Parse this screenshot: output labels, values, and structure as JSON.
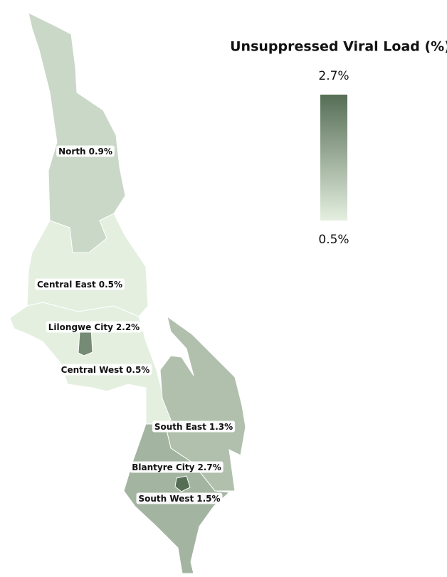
{
  "map": {
    "legend": {
      "title": "Unsuppressed Viral Load (%)",
      "max": {
        "value": 2.7,
        "label": "2.7%"
      },
      "min": {
        "value": 0.5,
        "label": "0.5%"
      },
      "min_color": "#e4efe0",
      "max_color": "#566e55"
    },
    "regions": [
      {
        "name": "North",
        "value": 0.9,
        "value_label": "0.9%"
      },
      {
        "name": "Central East",
        "value": 0.5,
        "value_label": "0.5%"
      },
      {
        "name": "Lilongwe City",
        "value": 2.2,
        "value_label": "2.2%"
      },
      {
        "name": "Central West",
        "value": 0.5,
        "value_label": "0.5%"
      },
      {
        "name": "South East",
        "value": 1.3,
        "value_label": "1.3%"
      },
      {
        "name": "Blantyre City",
        "value": 2.7,
        "value_label": "2.7%"
      },
      {
        "name": "South West",
        "value": 1.5,
        "value_label": "1.5%"
      }
    ]
  }
}
